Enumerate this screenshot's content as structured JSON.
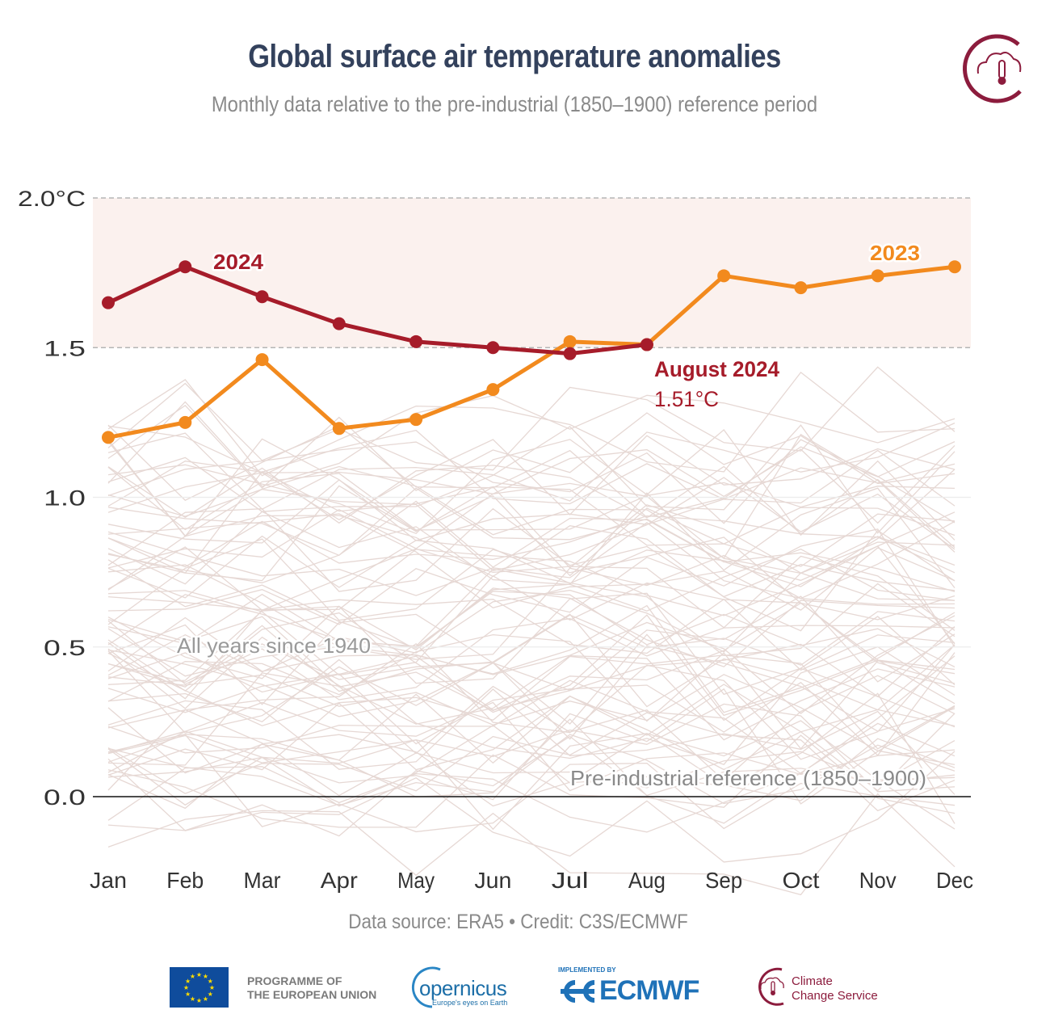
{
  "header": {
    "title": "Global surface air temperature anomalies",
    "subtitle": "Monthly data relative to the pre-industrial (1850–1900) reference period"
  },
  "footer": {
    "credit": "Data source: ERA5 • Credit: C3S/ECMWF",
    "eu_text_line1": "PROGRAMME OF",
    "eu_text_line2": "THE EUROPEAN UNION",
    "copernicus_word": "opernicus",
    "copernicus_tagline": "Europe's eyes on Earth",
    "ecmwf_implemented": "IMPLEMENTED BY",
    "ecmwf_word": "ECMWF",
    "c3s_line1": "Climate",
    "c3s_line2": "Change Service"
  },
  "colors": {
    "y2024": "#a61c2a",
    "y2023": "#f28a1e",
    "background_years": "#e6d8d4",
    "band": "#fbf1ee",
    "title": "#33415c",
    "c3s_brand": "#8c1c3d"
  },
  "chart_data": {
    "type": "line",
    "title": "Global surface air temperature anomalies",
    "subtitle": "Monthly data relative to the pre-industrial (1850–1900) reference period",
    "xlabel": "",
    "ylabel": "",
    "categories": [
      "Jan",
      "Feb",
      "Mar",
      "Apr",
      "May",
      "Jun",
      "Jul",
      "Aug",
      "Sep",
      "Oct",
      "Nov",
      "Dec"
    ],
    "ylim": [
      -0.25,
      2.0
    ],
    "yticks": [
      0.0,
      0.5,
      1.0,
      1.5,
      2.0
    ],
    "ytick_labels": [
      "0.0",
      "0.5",
      "1.0",
      "1.5",
      "2.0°C"
    ],
    "grid": true,
    "shaded_band": [
      1.5,
      2.0
    ],
    "series": [
      {
        "name": "2024",
        "values": [
          1.65,
          1.77,
          1.67,
          1.58,
          1.52,
          1.5,
          1.48,
          1.51
        ]
      },
      {
        "name": "2023",
        "values": [
          1.2,
          1.25,
          1.46,
          1.23,
          1.26,
          1.36,
          1.52,
          1.51,
          1.74,
          1.7,
          1.74,
          1.77
        ]
      }
    ],
    "background_series_label": "All years since 1940",
    "annotations": [
      {
        "text": "2024",
        "series": "2024"
      },
      {
        "text": "2023",
        "series": "2023"
      },
      {
        "text": "August 2024",
        "detail": "1.51°C"
      },
      {
        "text": "All years since 1940"
      },
      {
        "text": "Pre-industrial reference (1850–1900)"
      }
    ]
  }
}
